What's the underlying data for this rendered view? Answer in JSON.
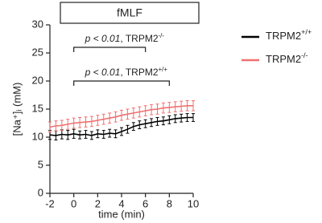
{
  "chart_data": {
    "type": "line",
    "header": "fMLF",
    "ylabel": "[Na⁺]ᵢ (mM)",
    "xlabel": "time (min)",
    "x": [
      -2,
      -1.5,
      -1,
      -0.5,
      0,
      0.5,
      1,
      1.5,
      2,
      2.5,
      3,
      3.5,
      4,
      4.5,
      5,
      5.5,
      6,
      6.5,
      7,
      7.5,
      8,
      8.5,
      9,
      9.5,
      10
    ],
    "series": [
      {
        "name": "TRPM2+/+",
        "color": "#000000",
        "values": [
          10.4,
          10.3,
          10.5,
          10.4,
          10.6,
          10.4,
          10.5,
          10.3,
          10.6,
          10.5,
          10.7,
          10.6,
          11.0,
          11.4,
          11.9,
          12.2,
          12.4,
          12.6,
          12.8,
          12.9,
          13.1,
          13.3,
          13.4,
          13.5,
          13.5
        ],
        "errors": [
          0.8,
          0.8,
          0.8,
          0.8,
          0.8,
          0.7,
          0.7,
          0.7,
          0.7,
          0.7,
          0.7,
          0.7,
          0.7,
          0.7,
          0.7,
          0.7,
          0.7,
          0.7,
          0.7,
          0.7,
          0.7,
          0.7,
          0.7,
          0.7,
          0.7
        ]
      },
      {
        "name": "TRPM2-/-",
        "color": "#f07070",
        "values": [
          11.8,
          12.0,
          12.1,
          12.3,
          12.5,
          12.6,
          12.7,
          12.8,
          13.0,
          13.2,
          13.4,
          13.6,
          13.9,
          14.1,
          14.3,
          14.5,
          14.7,
          14.9,
          15.0,
          15.2,
          15.3,
          15.4,
          15.5,
          15.6,
          15.6
        ],
        "errors": [
          0.9,
          0.9,
          0.9,
          0.9,
          0.9,
          0.9,
          0.9,
          0.9,
          0.9,
          0.9,
          0.9,
          0.9,
          0.9,
          0.9,
          0.9,
          0.9,
          0.9,
          0.9,
          0.9,
          0.9,
          0.9,
          0.9,
          0.9,
          0.9,
          0.9
        ]
      }
    ],
    "annotations": [
      {
        "text": "p < 0.01, TRPM2-/-",
        "x": [
          0,
          6
        ],
        "y": 26
      },
      {
        "text": "p < 0.01, TRPM2+/+",
        "x": [
          0,
          8
        ],
        "y": 20
      }
    ],
    "xlim": [
      -2,
      10
    ],
    "xticks": [
      -2,
      0,
      2,
      4,
      6,
      8,
      10
    ],
    "ylim": [
      0,
      30
    ],
    "yticks": [
      0,
      5,
      10,
      15,
      20,
      25,
      30
    ]
  }
}
